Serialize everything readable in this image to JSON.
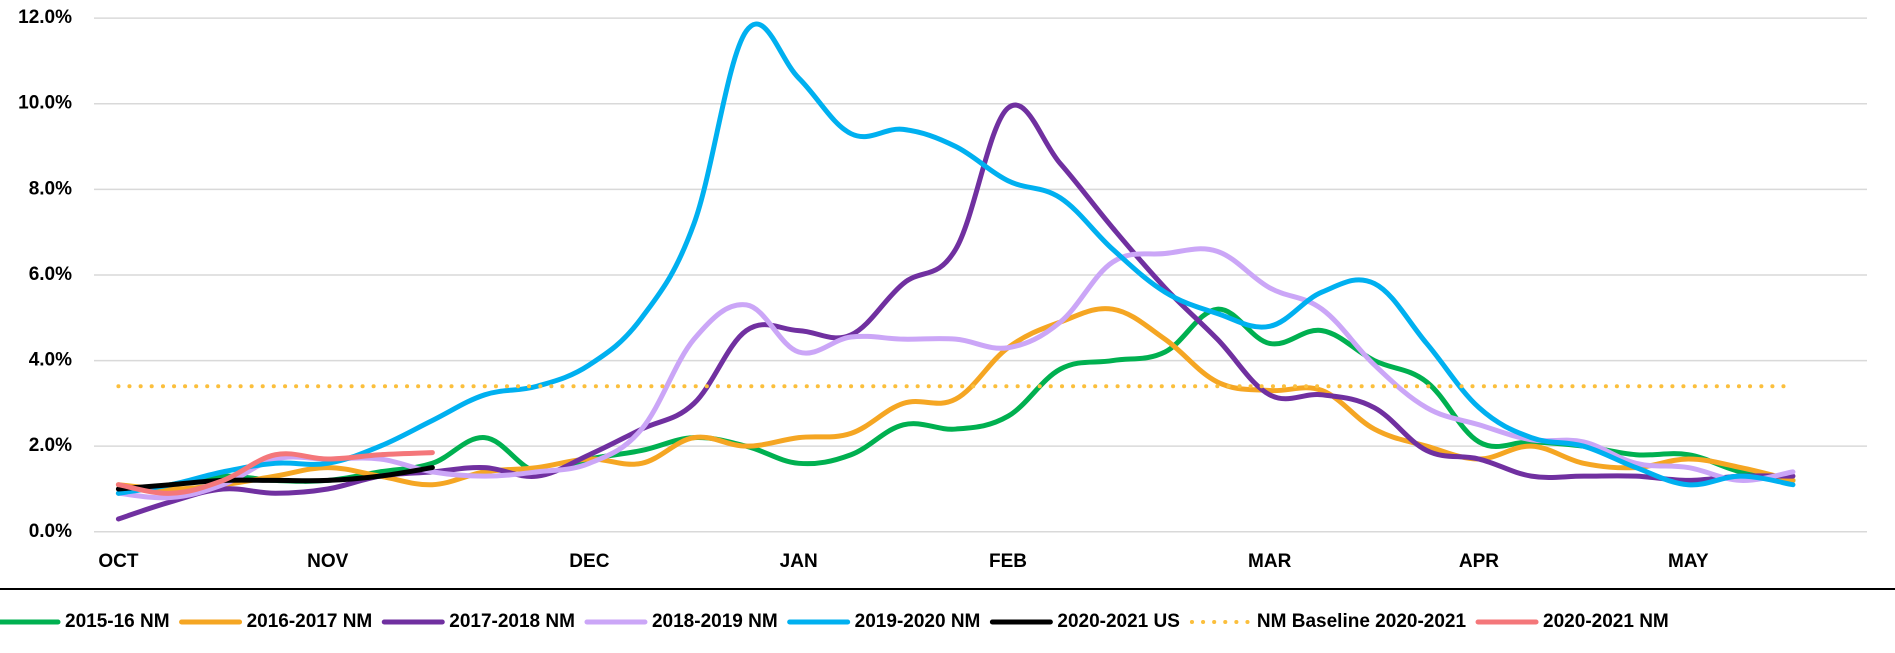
{
  "chart_data": {
    "type": "line",
    "categories": [
      "OCT",
      null,
      null,
      null,
      "NOV",
      null,
      null,
      null,
      null,
      "DEC",
      null,
      null,
      null,
      "JAN",
      null,
      null,
      null,
      "FEB",
      null,
      null,
      null,
      null,
      "MAR",
      null,
      null,
      null,
      "APR",
      null,
      null,
      null,
      "MAY",
      null,
      null
    ],
    "ylim": [
      0,
      12
    ],
    "yticks": [
      {
        "value": 0,
        "label": "0.0%"
      },
      {
        "value": 2,
        "label": "2.0%"
      },
      {
        "value": 4,
        "label": "4.0%"
      },
      {
        "value": 6,
        "label": "6.0%"
      },
      {
        "value": 8,
        "label": "8.0%"
      },
      {
        "value": 10,
        "label": "10.0%"
      },
      {
        "value": 12,
        "label": "12.0%"
      }
    ],
    "grid": true,
    "legend": "bottom",
    "series": [
      {
        "name": "2015-16 NM",
        "color": "#00b050",
        "values": [
          0.9,
          1.1,
          1.3,
          1.2,
          1.2,
          1.4,
          1.6,
          2.2,
          1.4,
          1.7,
          1.9,
          2.2,
          2.0,
          1.6,
          1.8,
          2.5,
          2.4,
          2.7,
          3.8,
          4.0,
          4.2,
          5.2,
          4.4,
          4.7,
          4.0,
          3.5,
          2.1,
          2.1,
          2.0,
          1.8,
          1.8,
          1.4,
          1.2
        ]
      },
      {
        "name": "2016-2017 NM",
        "color": "#f5a623",
        "values": [
          1.1,
          1.0,
          1.1,
          1.3,
          1.5,
          1.3,
          1.1,
          1.4,
          1.5,
          1.7,
          1.6,
          2.2,
          2.0,
          2.2,
          2.3,
          3.0,
          3.1,
          4.3,
          4.9,
          5.2,
          4.5,
          3.5,
          3.3,
          3.3,
          2.4,
          2.0,
          1.7,
          2.0,
          1.6,
          1.5,
          1.7,
          1.5,
          1.2
        ]
      },
      {
        "name": "2017-2018 NM",
        "color": "#7030a0",
        "values": [
          0.3,
          0.7,
          1.0,
          0.9,
          1.0,
          1.3,
          1.4,
          1.5,
          1.3,
          1.8,
          2.4,
          3.0,
          4.7,
          4.7,
          4.6,
          5.8,
          6.6,
          9.9,
          8.6,
          7.1,
          5.7,
          4.5,
          3.2,
          3.2,
          2.9,
          1.9,
          1.7,
          1.3,
          1.3,
          1.3,
          1.2,
          1.3,
          1.3
        ]
      },
      {
        "name": "2018-2019 NM",
        "color": "#cba6f7",
        "values": [
          0.9,
          0.8,
          1.1,
          1.7,
          1.7,
          1.7,
          1.4,
          1.3,
          1.4,
          1.6,
          2.4,
          4.5,
          5.3,
          4.2,
          4.55,
          4.5,
          4.5,
          4.3,
          4.9,
          6.3,
          6.5,
          6.55,
          5.7,
          5.2,
          3.9,
          2.9,
          2.5,
          2.15,
          2.1,
          1.6,
          1.5,
          1.2,
          1.4
        ]
      },
      {
        "name": "2019-2020 NM",
        "color": "#00b0f0",
        "values": [
          0.9,
          1.1,
          1.4,
          1.6,
          1.6,
          2.0,
          2.6,
          3.2,
          3.4,
          3.9,
          5.0,
          7.2,
          11.7,
          10.6,
          9.3,
          9.4,
          9.0,
          8.2,
          7.8,
          6.6,
          5.6,
          5.1,
          4.8,
          5.6,
          5.8,
          4.4,
          2.9,
          2.2,
          2.0,
          1.5,
          1.1,
          1.3,
          1.1
        ]
      },
      {
        "name": "2020-2021 US",
        "color": "#000000",
        "values": [
          1.0,
          1.1,
          1.2,
          1.2,
          1.2,
          1.3,
          1.5,
          null,
          null,
          null,
          null,
          null,
          null,
          null,
          null,
          null,
          null,
          null,
          null,
          null,
          null,
          null,
          null,
          null,
          null,
          null,
          null,
          null,
          null,
          null,
          null,
          null,
          null
        ]
      },
      {
        "name": "NM Baseline 2020-2021",
        "color": "#fbbf3c",
        "dotted": true,
        "values": [
          3.4,
          3.4,
          3.4,
          3.4,
          3.4,
          3.4,
          3.4,
          3.4,
          3.4,
          3.4,
          3.4,
          3.4,
          3.4,
          3.4,
          3.4,
          3.4,
          3.4,
          3.4,
          3.4,
          3.4,
          3.4,
          3.4,
          3.4,
          3.4,
          3.4,
          3.4,
          3.4,
          3.4,
          3.4,
          3.4,
          3.4,
          3.4,
          3.4
        ]
      },
      {
        "name": "2020-2021 NM",
        "color": "#f4777a",
        "values": [
          1.1,
          0.9,
          1.2,
          1.8,
          1.7,
          1.8,
          1.85,
          null,
          null,
          null,
          null,
          null,
          null,
          null,
          null,
          null,
          null,
          null,
          null,
          null,
          null,
          null,
          null,
          null,
          null,
          null,
          null,
          null,
          null,
          null,
          null,
          null,
          null
        ]
      }
    ]
  }
}
